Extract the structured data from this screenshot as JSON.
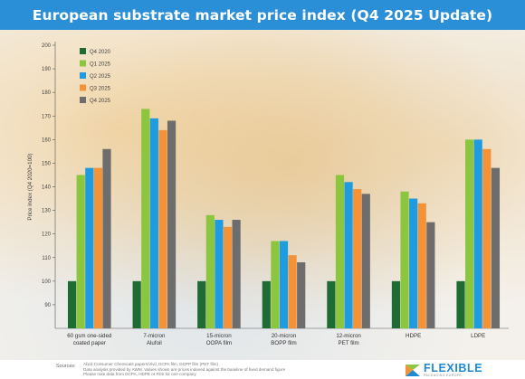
{
  "page": {
    "title": "European substrate market price index (Q4 2025 Update)",
    "source_label": "Sources:",
    "source_lines": [
      "Abcd Consumer Chemicals papers/Vivil, DCPA film, DCPP film (PET film)",
      "Data analysis provided by AWM. Values shown are prices indexed against the baseline of fixed demand figure",
      "Please note data from DCPA, HDPE or Film for one company"
    ],
    "logo_text": "FLEXIBLE",
    "logo_sub": "PACKAGING EUROPE"
  },
  "colors": {
    "Q4 2020": "#1e6b33",
    "Q1 2025": "#8cc63f",
    "Q2 2025": "#1f9be0",
    "Q3 2025": "#f39237",
    "Q4 2025": "#6d6d6d"
  },
  "chart_data": {
    "type": "bar",
    "title": "",
    "xlabel": "",
    "ylabel": "Price index (Q4 2020=100)",
    "ylim": [
      80,
      200
    ],
    "yticks": [
      90,
      100,
      110,
      120,
      130,
      140,
      150,
      160,
      170,
      180,
      190,
      200
    ],
    "grid": false,
    "legend_position": "top-left",
    "categories": [
      [
        "60 gsm one-sided",
        "coated paper"
      ],
      [
        "7-micron",
        "Alufoil"
      ],
      [
        "15-micron",
        "OOPA film"
      ],
      [
        "20-micron",
        "BOPP film"
      ],
      [
        "12-micron",
        "PET film"
      ],
      [
        "HDPE"
      ],
      [
        "LDPE"
      ]
    ],
    "series": [
      {
        "name": "Q4 2020",
        "values": [
          100,
          100,
          100,
          100,
          100,
          100,
          100
        ]
      },
      {
        "name": "Q1 2025",
        "values": [
          145,
          173,
          128,
          117,
          145,
          138,
          160
        ]
      },
      {
        "name": "Q2 2025",
        "values": [
          148,
          169,
          126,
          117,
          142,
          135,
          160
        ]
      },
      {
        "name": "Q3 2025",
        "values": [
          148,
          164,
          123,
          111,
          139,
          133,
          156
        ]
      },
      {
        "name": "Q4 2025",
        "values": [
          156,
          168,
          126,
          108,
          137,
          125,
          148
        ]
      }
    ]
  }
}
